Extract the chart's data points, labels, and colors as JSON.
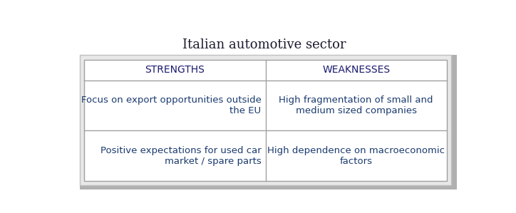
{
  "title": "Italian automotive sector",
  "title_color": "#1a1a2e",
  "title_fontsize": 13,
  "title_fontstyle": "normal",
  "title_fontfamily": "serif",
  "header_labels": [
    "STRENGTHS",
    "WEAKNESSES"
  ],
  "header_color": "#1a1a6e",
  "header_fontsize": 10,
  "header_bg": "#ffffff",
  "cell_texts": [
    [
      "Focus on export opportunities outside\nthe EU",
      "High fragmentation of small and\nmedium sized companies"
    ],
    [
      "Positive expectations for used car\nmarket / spare parts",
      "High dependence on macroeconomic\nfactors"
    ]
  ],
  "cell_text_color": "#1a3a6e",
  "cell_fontsize": 9.5,
  "outer_border_color": "#c0c0c0",
  "inner_border_color": "#a0a0a0",
  "shadow_color": "#b0b0b0",
  "bg_color": "#ffffff",
  "fig_bg": "#ffffff",
  "outer_bg": "#e8e8e8"
}
